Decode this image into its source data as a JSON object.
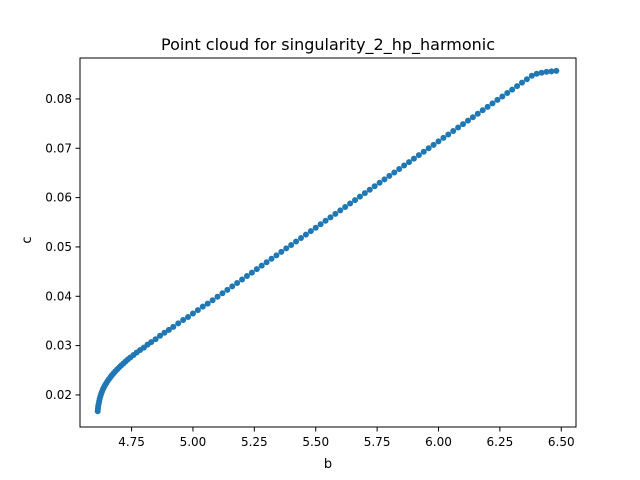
{
  "chart_data": {
    "type": "scatter",
    "title": "Point cloud for singularity_2_hp_harmonic",
    "xlabel": "b",
    "ylabel": "c",
    "xlim": [
      4.54,
      6.56
    ],
    "ylim": [
      0.0135,
      0.0883
    ],
    "xticks": [
      4.75,
      5.0,
      5.25,
      5.5,
      5.75,
      6.0,
      6.25,
      6.5
    ],
    "xtick_labels": [
      "4.75",
      "5.00",
      "5.25",
      "5.50",
      "5.75",
      "6.00",
      "6.25",
      "6.50"
    ],
    "yticks": [
      0.02,
      0.03,
      0.04,
      0.05,
      0.06,
      0.07,
      0.08
    ],
    "ytick_labels": [
      "0.02",
      "0.03",
      "0.04",
      "0.05",
      "0.06",
      "0.07",
      "0.08"
    ],
    "grid": false,
    "legend": "none",
    "marker_color": "#1f77b4",
    "series": [
      {
        "x": [
          4.612,
          4.613,
          4.614,
          4.616,
          4.618,
          4.62,
          4.623,
          4.626,
          4.629,
          4.633,
          4.637,
          4.642,
          4.647,
          4.652,
          4.658,
          4.664,
          4.67,
          4.677,
          4.684,
          4.692,
          4.7,
          4.708,
          4.717,
          4.726,
          4.735,
          4.745,
          4.758,
          4.771,
          4.785,
          4.8,
          4.815,
          4.83,
          4.848,
          4.866,
          4.884,
          4.902,
          4.92,
          4.94,
          4.96,
          4.98,
          5.0,
          5.02,
          5.04,
          5.06,
          5.08,
          5.1,
          5.12,
          5.14,
          5.16,
          5.18,
          5.2,
          5.22,
          5.24,
          5.26,
          5.28,
          5.3,
          5.32,
          5.34,
          5.36,
          5.38,
          5.4,
          5.42,
          5.44,
          5.46,
          5.48,
          5.5,
          5.52,
          5.54,
          5.56,
          5.58,
          5.6,
          5.62,
          5.64,
          5.66,
          5.68,
          5.7,
          5.72,
          5.74,
          5.76,
          5.78,
          5.8,
          5.82,
          5.84,
          5.86,
          5.88,
          5.9,
          5.92,
          5.94,
          5.96,
          5.98,
          6.0,
          6.02,
          6.04,
          6.06,
          6.08,
          6.1,
          6.12,
          6.14,
          6.16,
          6.18,
          6.2,
          6.22,
          6.24,
          6.26,
          6.28,
          6.3,
          6.32,
          6.34,
          6.36,
          6.38,
          6.4,
          6.42,
          6.44,
          6.46,
          6.48
        ],
        "y": [
          0.0167,
          0.0172,
          0.0177,
          0.0182,
          0.0187,
          0.0192,
          0.0197,
          0.0202,
          0.0206,
          0.0211,
          0.0215,
          0.022,
          0.0224,
          0.0228,
          0.0232,
          0.0236,
          0.024,
          0.0244,
          0.0248,
          0.0252,
          0.0256,
          0.026,
          0.0264,
          0.0268,
          0.0272,
          0.0276,
          0.0281,
          0.0286,
          0.0291,
          0.0296,
          0.0302,
          0.0307,
          0.0313,
          0.032,
          0.0326,
          0.0332,
          0.0338,
          0.0345,
          0.0352,
          0.0358,
          0.0365,
          0.0372,
          0.0379,
          0.0385,
          0.0392,
          0.0399,
          0.0406,
          0.0413,
          0.042,
          0.0427,
          0.0434,
          0.0441,
          0.0448,
          0.0455,
          0.0462,
          0.0469,
          0.0476,
          0.0483,
          0.049,
          0.0497,
          0.0504,
          0.0511,
          0.0518,
          0.0525,
          0.0532,
          0.0539,
          0.0546,
          0.0553,
          0.056,
          0.0567,
          0.0574,
          0.0581,
          0.0588,
          0.0595,
          0.0602,
          0.0609,
          0.0616,
          0.0623,
          0.063,
          0.0637,
          0.0644,
          0.0651,
          0.0658,
          0.0665,
          0.0672,
          0.0679,
          0.0686,
          0.0693,
          0.07,
          0.0707,
          0.0714,
          0.0721,
          0.0728,
          0.0735,
          0.0742,
          0.0749,
          0.0756,
          0.0763,
          0.077,
          0.0777,
          0.0784,
          0.0791,
          0.0798,
          0.0805,
          0.0812,
          0.0819,
          0.0826,
          0.0833,
          0.084,
          0.0847,
          0.0851,
          0.0853,
          0.0855,
          0.0856,
          0.0857
        ]
      }
    ]
  }
}
